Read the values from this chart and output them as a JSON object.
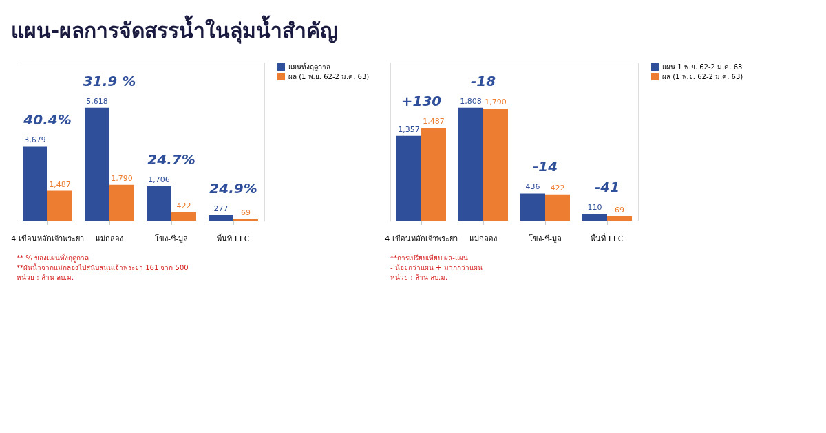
{
  "chart_data": [
    {
      "type": "bar",
      "title": "แผน-ผลการจัดสรรน้ำในลุ่มน้ำสำคัญ",
      "categories": [
        "4 เขื่อนหลักเจ้าพระยา",
        "แม่กลอง",
        "โขง-ชี-มูล",
        "พื้นที่ EEC"
      ],
      "series": [
        {
          "name": "แผนทั้งฤดูกาล",
          "color": "#2f4f9a",
          "values": [
            3679,
            5618,
            1706,
            277
          ],
          "value_labels": [
            "3,679",
            "5,618",
            "1,706",
            "277"
          ]
        },
        {
          "name": "ผล (1 พ.ย. 62-2 ม.ค. 63)",
          "color": "#ed7d31",
          "values": [
            1487,
            1790,
            422,
            69
          ],
          "value_labels": [
            "1,487",
            "1,790",
            "422",
            "69"
          ]
        }
      ],
      "legend": "top right",
      "annotations": [
        "40.4%",
        "31.9 %",
        "24.7%",
        "24.9%",
        "** % ของแผนทั้งฤดูกาล",
        "**ผันน้ำจากแม่กลองไปสนับสนุนเจ้าพระยา 161 จาก 500",
        "หน่วย : ล้าน ลบ.ม."
      ]
    },
    {
      "type": "bar",
      "categories": [
        "4 เขื่อนหลักเจ้าพระยา",
        "แม่กลอง",
        "โขง-ชี-มูล",
        "พื้นที่ EEC"
      ],
      "series": [
        {
          "name": "แผน 1 พ.ย. 62-2 ม.ค. 63",
          "color": "#2f4f9a",
          "values": [
            1357,
            1808,
            436,
            110
          ],
          "value_labels": [
            "1,357",
            "1,808",
            "436",
            "110"
          ]
        },
        {
          "name": "ผล (1 พ.ย. 62-2 ม.ค. 63)",
          "color": "#ed7d31",
          "values": [
            1487,
            1790,
            422,
            69
          ],
          "value_labels": [
            "1,487",
            "1,790",
            "422",
            "69"
          ]
        }
      ],
      "legend": "top right",
      "annotations": [
        "+130",
        "-18",
        "-14",
        "-41",
        "**การเปรียบเทียบ ผล-แผน",
        "- น้อยกว่าแผน  + มากกว่าแผน",
        "หน่วย : ล้าน ลบ.ม."
      ]
    }
  ]
}
